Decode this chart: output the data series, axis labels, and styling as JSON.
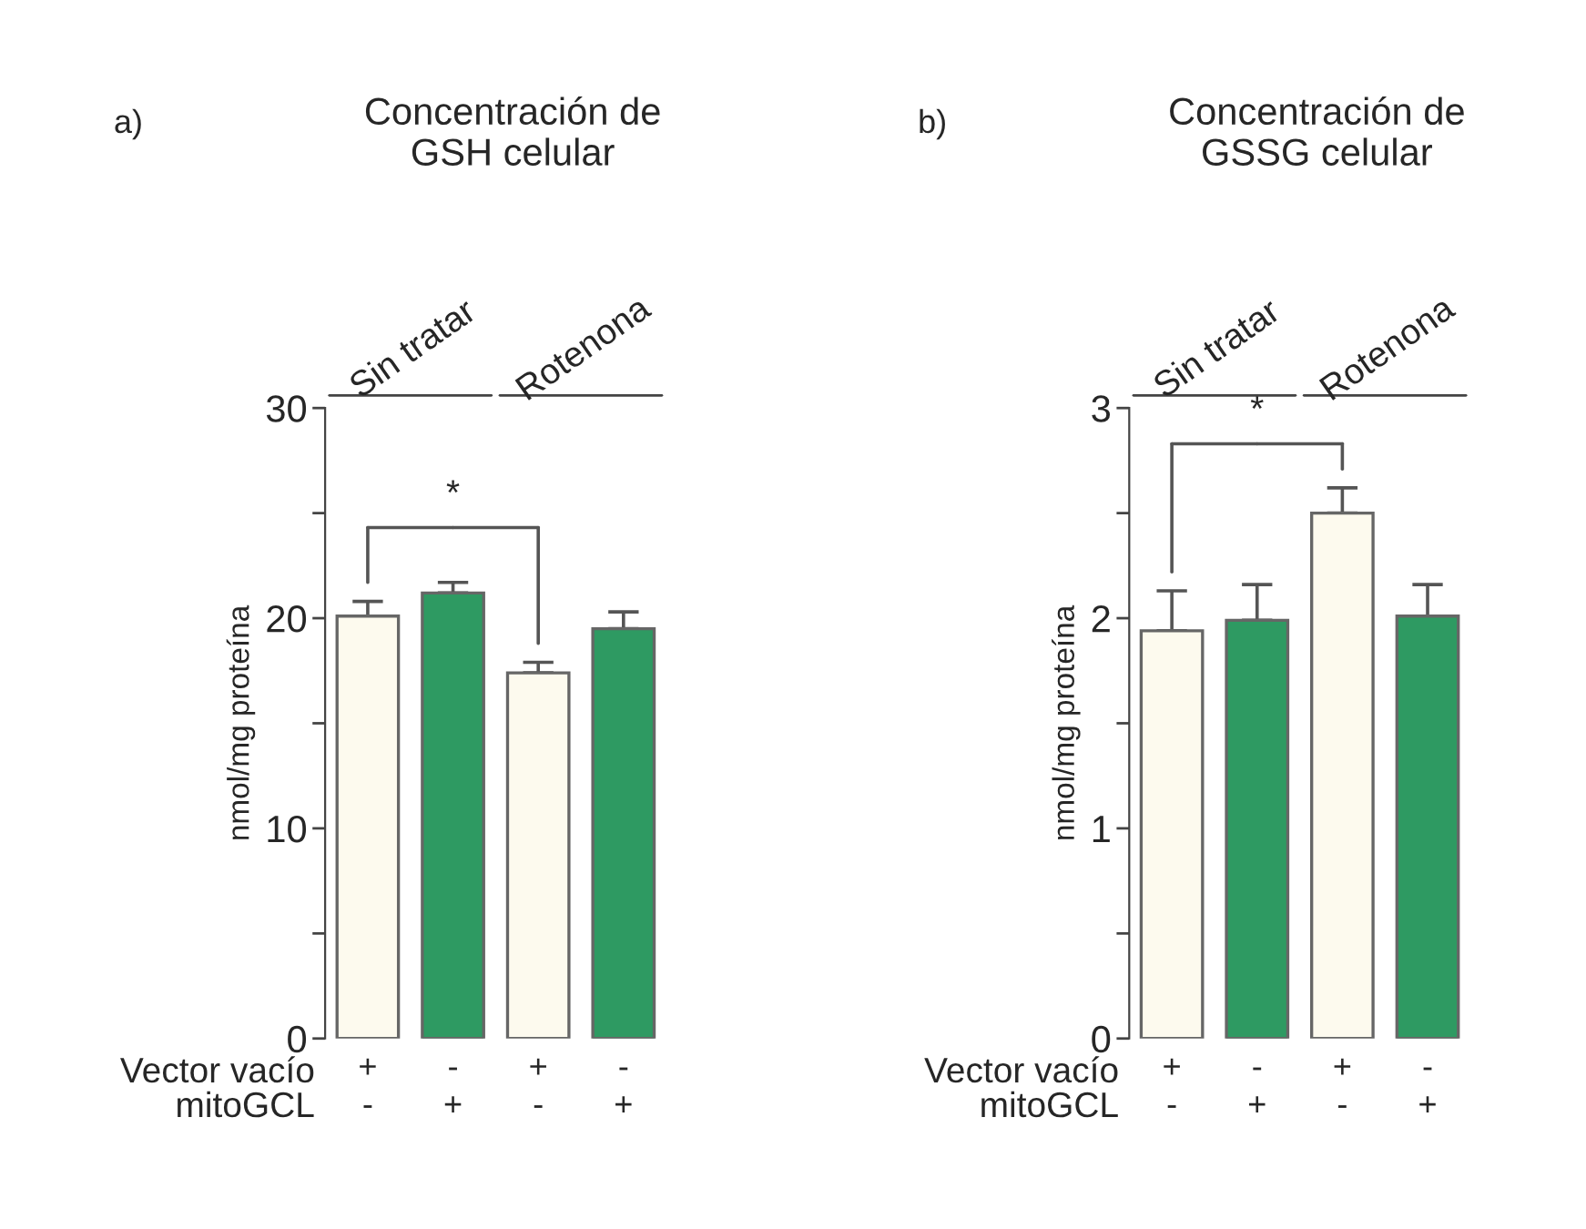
{
  "chart_data": [
    {
      "type": "bar",
      "title": "Concentración de\nGSH celular",
      "ylabel": "nmol/mg proteína",
      "categories": [
        "+\n-",
        "-\n+",
        "+\n-",
        "-\n+"
      ],
      "values": [
        20.1,
        21.2,
        17.4,
        19.5
      ],
      "errors": [
        [
          20.1,
          20.8
        ],
        [
          21.2,
          21.7
        ],
        [
          17.4,
          17.9
        ],
        [
          19.5,
          20.3
        ]
      ],
      "colors": [
        "#fdfaee",
        "#2e9a62",
        "#fdfaee",
        "#2e9a62"
      ],
      "ylim": [
        0,
        30
      ],
      "yticks": [
        0,
        {
          "value": 5,
          "label": null
        },
        10,
        {
          "value": 15,
          "label": null
        },
        20,
        {
          "value": 25,
          "label": null
        },
        30
      ],
      "annotations": [
        "a)",
        "Sin tratar",
        "Rotenona",
        "*",
        "Vector vacío",
        "mitoGCL"
      ]
    },
    {
      "type": "bar",
      "title": "Concentración de\nGSSG celular",
      "ylabel": "nmol/mg proteína",
      "categories": [
        "+\n-",
        "-\n+",
        "+\n-",
        "-\n+"
      ],
      "values": [
        1.94,
        1.99,
        2.5,
        2.01
      ],
      "errors": [
        [
          1.94,
          2.13
        ],
        [
          1.99,
          2.16
        ],
        [
          2.5,
          2.62
        ],
        [
          2.01,
          2.16
        ]
      ],
      "colors": [
        "#fdfaee",
        "#2e9a62",
        "#fdfaee",
        "#2e9a62"
      ],
      "ylim": [
        0,
        3
      ],
      "yticks": [
        0,
        {
          "value": 0.5,
          "label": null
        },
        1,
        {
          "value": 1.5,
          "label": null
        },
        2,
        {
          "value": 2.5,
          "label": null
        },
        3
      ],
      "annotations": [
        "b)",
        "Sin tratar",
        "Rotenona",
        "*",
        "Vector vacío",
        "mitoGCL"
      ]
    }
  ]
}
